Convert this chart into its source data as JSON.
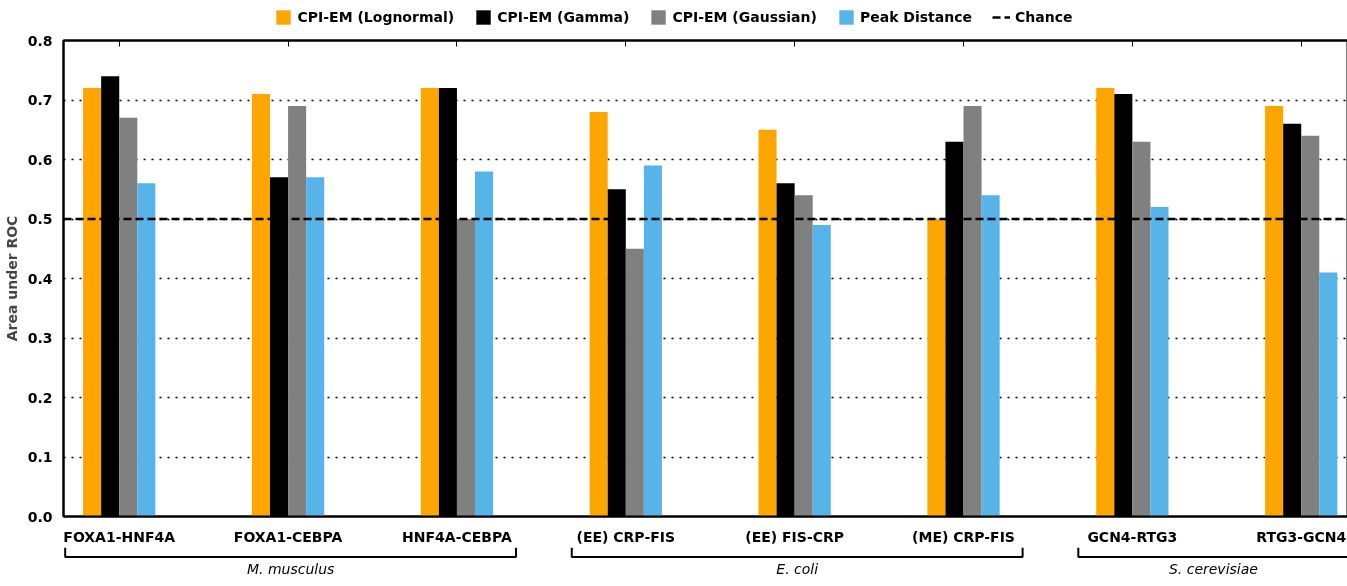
{
  "chart_data": {
    "type": "bar",
    "ylabel": "Area under ROC",
    "categories": [
      "FOXA1-HNF4A",
      "FOXA1-CEBPA",
      "HNF4A-CEBPA",
      "(EE) CRP-FIS",
      "(EE) FIS-CRP",
      "(ME) CRP-FIS",
      "GCN4-RTG3",
      "RTG3-GCN4"
    ],
    "series": [
      {
        "name": "CPI-EM (Lognormal)",
        "color": "#ffa500",
        "values": [
          0.72,
          0.71,
          0.72,
          0.68,
          0.65,
          0.5,
          0.72,
          0.69
        ]
      },
      {
        "name": "CPI-EM (Gamma)",
        "color": "#000000",
        "values": [
          0.74,
          0.57,
          0.72,
          0.55,
          0.56,
          0.63,
          0.71,
          0.66
        ]
      },
      {
        "name": "CPI-EM (Gaussian)",
        "color": "#808080",
        "values": [
          0.67,
          0.69,
          0.5,
          0.45,
          0.54,
          0.69,
          0.63,
          0.64
        ]
      },
      {
        "name": "Peak Distance",
        "color": "#56b4e9",
        "values": [
          0.56,
          0.57,
          0.58,
          0.59,
          0.49,
          0.54,
          0.52,
          0.41
        ]
      }
    ],
    "ylim": [
      0,
      0.8
    ],
    "yticks": [
      {
        "value": 0,
        "label": "0.0"
      },
      0.1,
      0.2,
      0.3,
      0.4,
      0.5,
      0.6,
      0.7,
      0.8
    ],
    "ref_lines": [
      {
        "axis": "y",
        "value": 0.5,
        "label": "Chance",
        "color": "#000000",
        "line_style": "dashed"
      }
    ],
    "annotations": [
      "M. musculus",
      "E. coli",
      "S. cerevisiae"
    ],
    "grid": "y",
    "legend": "top"
  }
}
